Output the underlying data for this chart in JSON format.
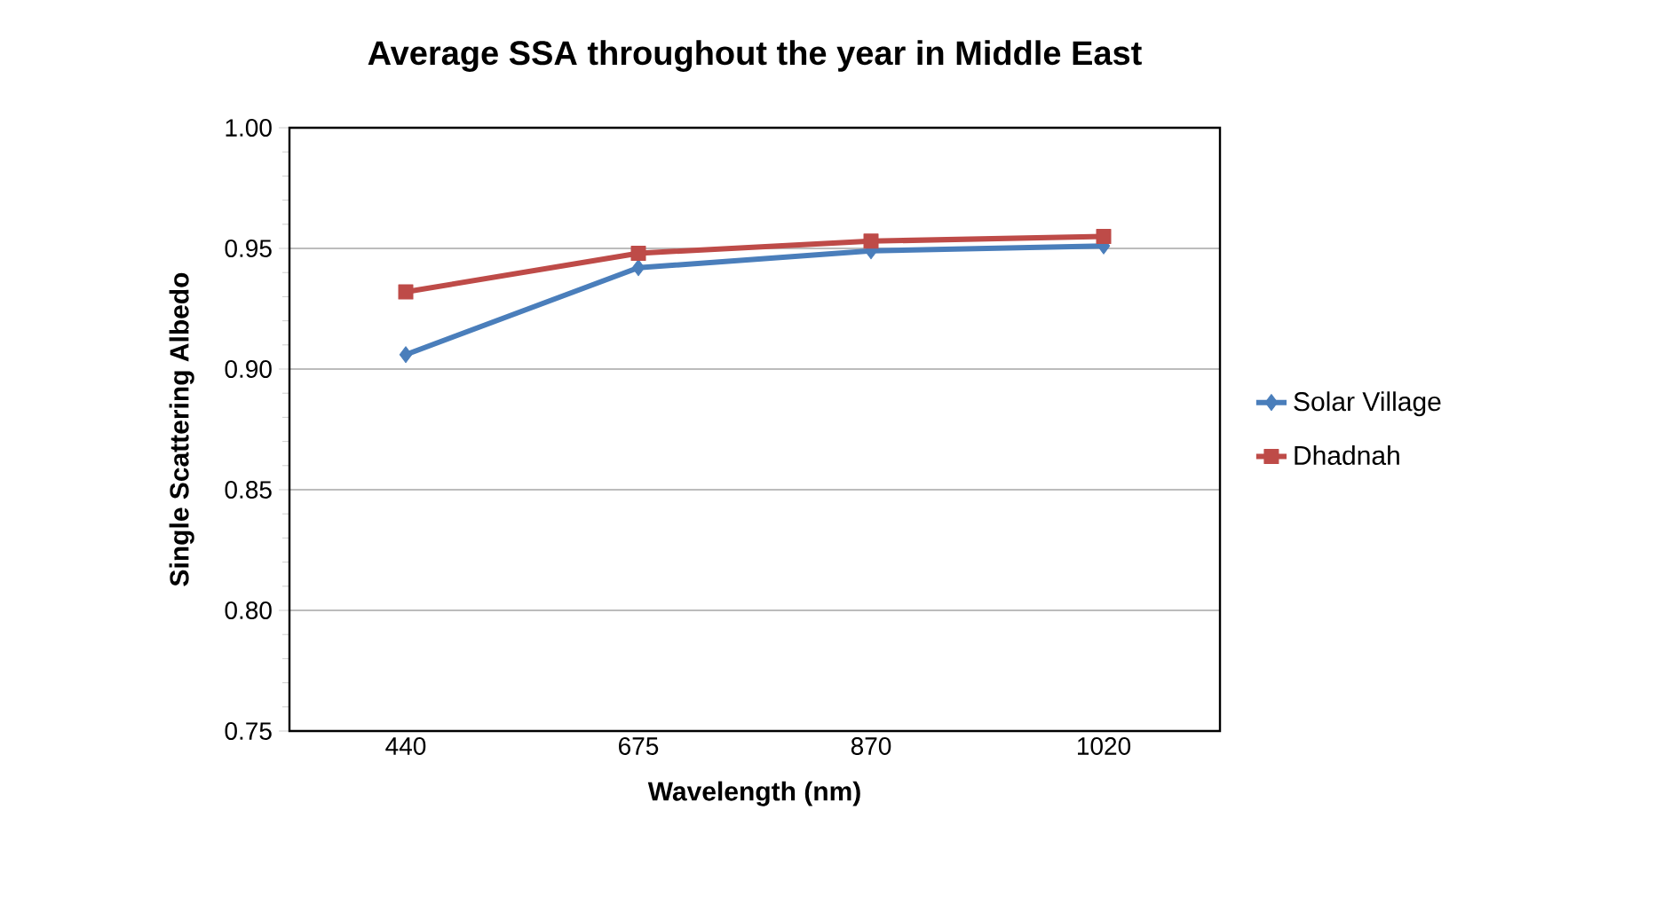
{
  "chart_data": {
    "type": "line",
    "title": "Average SSA throughout the year in Middle East",
    "xlabel": "Wavelength (nm)",
    "ylabel": "Single Scattering Albedo",
    "categories": [
      "440",
      "675",
      "870",
      "1020"
    ],
    "series": [
      {
        "name": "Solar Village",
        "color": "#4a7ebb",
        "marker": "diamond",
        "values": [
          0.906,
          0.942,
          0.949,
          0.951
        ]
      },
      {
        "name": "Dhadnah",
        "color": "#be4b48",
        "marker": "square",
        "values": [
          0.932,
          0.948,
          0.953,
          0.955
        ]
      }
    ],
    "ylim": [
      0.75,
      1.0
    ],
    "yticks": [
      {
        "value": 0.75,
        "label": "0.75"
      },
      {
        "value": 0.8,
        "label": "0.80"
      },
      {
        "value": 0.85,
        "label": "0.85"
      },
      {
        "value": 0.9,
        "label": "0.90"
      },
      {
        "value": 0.95,
        "label": "0.95"
      },
      {
        "value": 1.0,
        "label": "1.00"
      }
    ],
    "grid": "y",
    "legend": "right",
    "line_style": "solid"
  }
}
